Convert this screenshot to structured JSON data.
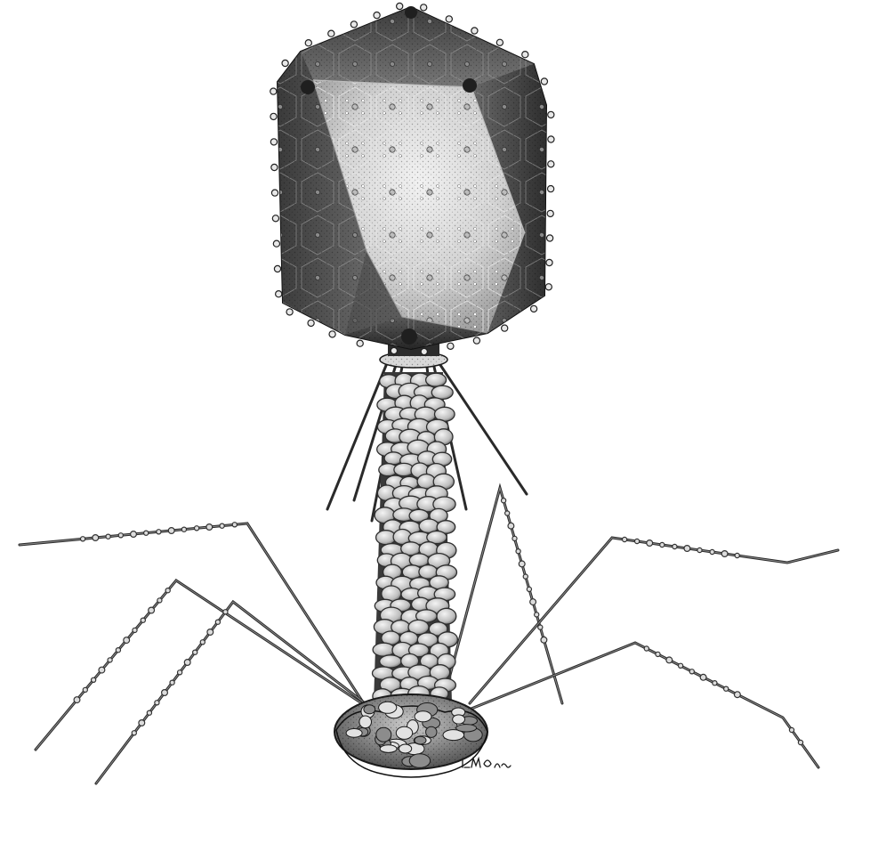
{
  "figure": {
    "subject": "bacteriophage",
    "parts": {
      "head": "capsid-icosahedral-head",
      "collar": "collar",
      "tail": "contractile-tail-sheath",
      "whiskers": "whisker-fibers",
      "baseplate": "baseplate",
      "long_fibers": "long-tail-fibers"
    },
    "signature": "LMGRuss"
  },
  "colors": {
    "capsid_dark": "#2f2f2f",
    "capsid_mid": "#6e6e6e",
    "capsid_light": "#d9d9d9",
    "tail_light": "#e2e2e2",
    "tail_dark": "#3a3a3a",
    "outline": "#1a1a1a"
  }
}
